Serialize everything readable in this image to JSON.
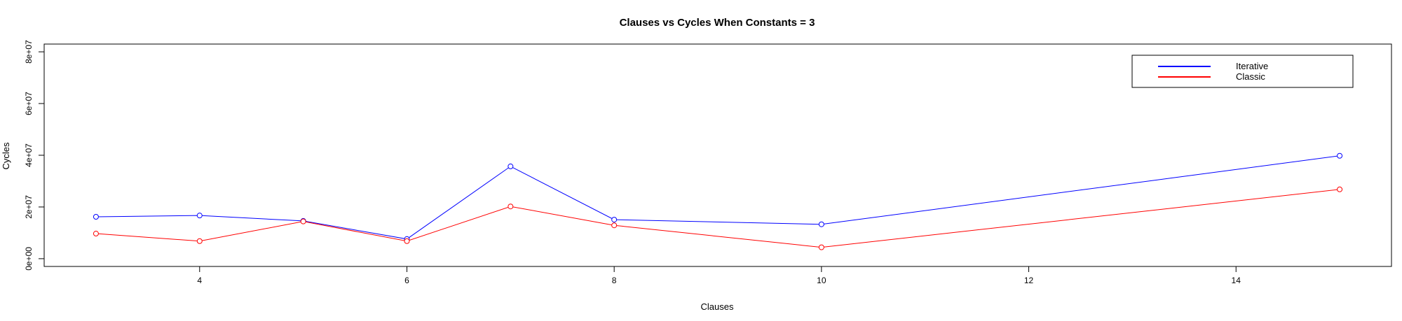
{
  "chart_data": {
    "type": "line",
    "title": "Clauses vs Cycles When Constants = 3",
    "xlabel": "Clauses",
    "ylabel": "Cycles",
    "xlim": [
      2.5,
      15.5
    ],
    "ylim": [
      -3000000,
      83000000
    ],
    "x_ticks": [
      4,
      6,
      8,
      10,
      12,
      14
    ],
    "x_tick_labels": [
      "4",
      "6",
      "8",
      "10",
      "12",
      "14"
    ],
    "y_ticks": [
      0,
      20000000,
      40000000,
      60000000,
      80000000
    ],
    "y_tick_labels": [
      "0e+00",
      "2e+07",
      "4e+07",
      "6e+07",
      "8e+07"
    ],
    "legend_position": "top-right",
    "grid": false,
    "x": [
      3,
      4,
      5,
      6,
      7,
      8,
      10,
      15
    ],
    "series": [
      {
        "name": "Iterative",
        "color": "#0000ff",
        "values": [
          16200000,
          16700000,
          14600000,
          7600000,
          35700000,
          15100000,
          13300000,
          39800000
        ]
      },
      {
        "name": "Classic",
        "color": "#ff0000",
        "values": [
          9700000,
          6800000,
          14400000,
          6800000,
          20200000,
          12900000,
          4400000,
          26800000
        ]
      }
    ]
  }
}
